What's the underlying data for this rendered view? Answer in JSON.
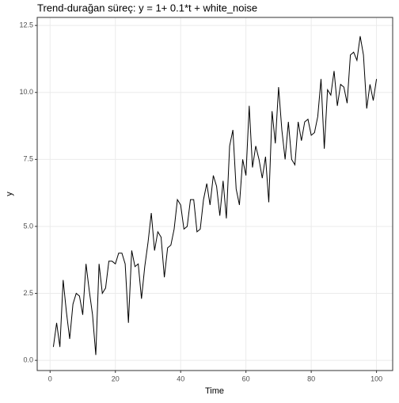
{
  "chart_data": {
    "type": "line",
    "title": "Trend-durağan süreç: y = 1+ 0.1*t + white_noise",
    "xlabel": "Time",
    "ylabel": "y",
    "x": [
      1,
      2,
      3,
      4,
      5,
      6,
      7,
      8,
      9,
      10,
      11,
      12,
      13,
      14,
      15,
      16,
      17,
      18,
      19,
      20,
      21,
      22,
      23,
      24,
      25,
      26,
      27,
      28,
      29,
      30,
      31,
      32,
      33,
      34,
      35,
      36,
      37,
      38,
      39,
      40,
      41,
      42,
      43,
      44,
      45,
      46,
      47,
      48,
      49,
      50,
      51,
      52,
      53,
      54,
      55,
      56,
      57,
      58,
      59,
      60,
      61,
      62,
      63,
      64,
      65,
      66,
      67,
      68,
      69,
      70,
      71,
      72,
      73,
      74,
      75,
      76,
      77,
      78,
      79,
      80,
      81,
      82,
      83,
      84,
      85,
      86,
      87,
      88,
      89,
      90,
      91,
      92,
      93,
      94,
      95,
      96,
      97,
      98,
      99,
      100
    ],
    "series": [
      {
        "name": "y",
        "color": "#000000",
        "values": [
          0.5,
          1.4,
          0.5,
          3.0,
          1.8,
          0.8,
          2.1,
          2.5,
          2.4,
          1.7,
          3.6,
          2.6,
          1.7,
          0.2,
          3.6,
          2.5,
          2.7,
          3.7,
          3.7,
          3.6,
          4.0,
          4.0,
          3.6,
          1.4,
          4.1,
          3.5,
          3.6,
          2.3,
          3.5,
          4.4,
          5.5,
          4.1,
          4.8,
          4.6,
          3.1,
          4.2,
          4.3,
          4.9,
          6.0,
          5.8,
          4.9,
          5.0,
          6.0,
          6.0,
          4.8,
          4.9,
          6.0,
          6.6,
          5.8,
          6.9,
          6.5,
          5.4,
          6.7,
          5.3,
          8.0,
          8.6,
          6.4,
          5.8,
          7.5,
          6.9,
          9.5,
          7.2,
          8.0,
          7.5,
          6.8,
          7.6,
          5.9,
          9.3,
          8.1,
          10.2,
          8.6,
          7.5,
          8.9,
          7.5,
          7.3,
          8.9,
          8.2,
          8.9,
          9.0,
          8.4,
          8.5,
          9.1,
          10.5,
          7.9,
          10.1,
          9.9,
          10.8,
          9.5,
          10.3,
          10.2,
          9.6,
          11.4,
          11.5,
          11.2,
          12.1,
          11.4,
          9.4,
          10.3,
          9.7,
          10.5
        ]
      }
    ],
    "xlim": [
      -3.95,
      104.95
    ],
    "ylim": [
      -0.38,
      12.8
    ],
    "xticks": [
      0,
      20,
      40,
      60,
      80,
      100
    ],
    "yticks": [
      {
        "value": 0,
        "label": "0.0"
      },
      {
        "value": 2.5,
        "label": "2.5"
      },
      {
        "value": 5,
        "label": "5.0"
      },
      {
        "value": 7.5,
        "label": "7.5"
      },
      {
        "value": 10,
        "label": "10.0"
      },
      {
        "value": 12.5,
        "label": "12.5"
      }
    ],
    "grid": true
  }
}
